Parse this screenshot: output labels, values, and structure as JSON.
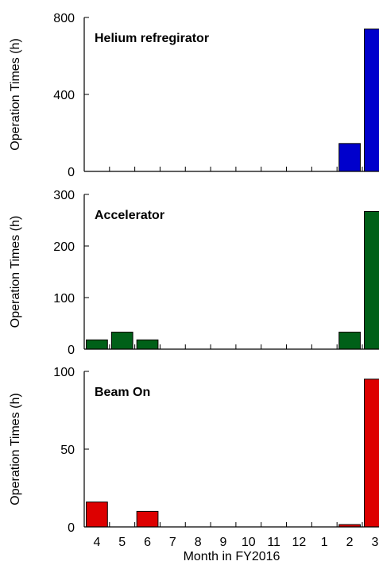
{
  "chart_data": [
    {
      "type": "bar",
      "title": "Helium refregirator",
      "ylabel": "Operation Times (h)",
      "xlabel": "",
      "categories": [
        "4",
        "5",
        "6",
        "7",
        "8",
        "9",
        "10",
        "11",
        "12",
        "1",
        "2",
        "3"
      ],
      "values": [
        0,
        0,
        0,
        0,
        0,
        0,
        0,
        0,
        0,
        0,
        145,
        740
      ],
      "ylim": [
        0,
        800
      ],
      "yticks": [
        0,
        400,
        800
      ],
      "color": "#0000cc",
      "grid": false
    },
    {
      "type": "bar",
      "title": "Accelerator",
      "ylabel": "Operation Times (h)",
      "xlabel": "",
      "categories": [
        "4",
        "5",
        "6",
        "7",
        "8",
        "9",
        "10",
        "11",
        "12",
        "1",
        "2",
        "3"
      ],
      "values": [
        18,
        33,
        18,
        0,
        0,
        0,
        0,
        0,
        0,
        0,
        33,
        267
      ],
      "ylim": [
        0,
        300
      ],
      "yticks": [
        0,
        100,
        200,
        300
      ],
      "color": "#006018",
      "grid": false
    },
    {
      "type": "bar",
      "title": "Beam On",
      "ylabel": "Operation Times (h)",
      "xlabel": "Month in FY2016",
      "categories": [
        "4",
        "5",
        "6",
        "7",
        "8",
        "9",
        "10",
        "11",
        "12",
        "1",
        "2",
        "3"
      ],
      "values": [
        16,
        0,
        10,
        0,
        0,
        0,
        0,
        0,
        0,
        0,
        1.5,
        95
      ],
      "ylim": [
        0,
        100
      ],
      "yticks": [
        0,
        50,
        100
      ],
      "color": "#dd0000",
      "grid": false
    }
  ]
}
